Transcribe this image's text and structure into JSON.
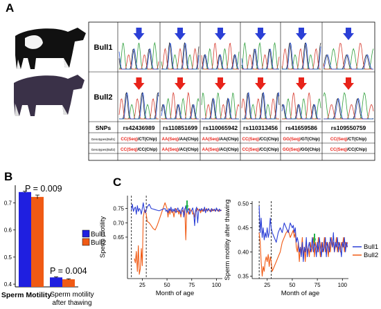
{
  "panels": {
    "a": "A",
    "b": "B",
    "c": "C"
  },
  "panel_a": {
    "bull_labels": [
      "Bull1",
      "Bull2"
    ],
    "table": {
      "header": "SNPs",
      "row_labels": [
        "Genotypes(Bull1)",
        "Genotypes(Bull2)"
      ],
      "snps": [
        "rs42436989",
        "rs110851699",
        "rs110065942",
        "rs110313456",
        "rs41659586",
        "rs109550759"
      ],
      "bull1_seq": [
        "CC(Seq)",
        "AA(Seq)",
        "AA(Seq)",
        "CC(Seq)",
        "GG(Seq)",
        "CC(Seq)"
      ],
      "bull1_chip": [
        "/CT(Chip)",
        "/AA(Chip)",
        "/AA(Chip)",
        "/CC(Chip)",
        "/GT(Chip)",
        "/CT(Chip)"
      ],
      "bull2_seq": [
        "CC(Seq)",
        "AA(Seq)",
        "AA(Seq)",
        "CC(Seq)",
        "GG(Seq)",
        "CC(Seq)"
      ],
      "bull2_chip": [
        "/CC(Chip)",
        "/AC(Chip)",
        "/AC(Chip)",
        "/CC(Chip)",
        "/GG(Chip)",
        "/CC(Chip)"
      ]
    },
    "colors": {
      "bull1_arrow": "#2b3fd6",
      "bull2_arrow": "#e8231a",
      "seq_text": "#e8231a"
    }
  },
  "chart_data": [
    {
      "type": "bar",
      "categories": [
        "Sperm Motility",
        "Sperm motility after thawing"
      ],
      "series": [
        {
          "name": "Bull1",
          "values": [
            0.74,
            0.425
          ],
          "errors": [
            0.003,
            0.002
          ],
          "color": "#1f1fe0"
        },
        {
          "name": "Bull2",
          "values": [
            0.722,
            0.418
          ],
          "errors": [
            0.007,
            0.002
          ],
          "color": "#f05a14"
        }
      ],
      "annotations": [
        "P = 0.009",
        "P = 0.004"
      ],
      "yticks": [
        "0.4",
        "0.5",
        "0.6",
        "0.7"
      ],
      "ylim": [
        0.39,
        0.765
      ],
      "legend": "right"
    },
    {
      "type": "line",
      "xlabel": "Month of age",
      "ylabel": "Sperm motility",
      "xticks": [
        "25",
        "50",
        "75",
        "100"
      ],
      "yticks": [
        "0.65",
        "0.70",
        "0.75"
      ],
      "xlim": [
        10,
        106
      ],
      "ylim": [
        0.505,
        0.795
      ],
      "vlines": [
        14,
        29
      ],
      "series": [
        {
          "name": "Bull1",
          "color": "#2b3fd6",
          "x": [
            14,
            15,
            16,
            17,
            18,
            19,
            20,
            21,
            22,
            23,
            24,
            25,
            26,
            27,
            28,
            30,
            32,
            34,
            36,
            38,
            40,
            42,
            44,
            46,
            48,
            49,
            50,
            51,
            52,
            53,
            54,
            55,
            56,
            57,
            58,
            59,
            60,
            61,
            62,
            63,
            64,
            65,
            66,
            67,
            68,
            69,
            70,
            71,
            72,
            73,
            74,
            75,
            76,
            77,
            78,
            79,
            80,
            81,
            82,
            83,
            84,
            85,
            86,
            87,
            88,
            89,
            90,
            91,
            92,
            93,
            94,
            95,
            96,
            97,
            98,
            99,
            100,
            101,
            102,
            103,
            104,
            105
          ],
          "y": [
            0.745,
            0.765,
            0.74,
            0.75,
            0.755,
            0.73,
            0.76,
            0.74,
            0.75,
            0.745,
            0.73,
            0.75,
            0.77,
            0.745,
            0.735,
            0.755,
            0.765,
            0.75,
            0.748,
            0.746,
            0.744,
            0.742,
            0.745,
            0.748,
            0.75,
            0.74,
            0.745,
            0.735,
            0.75,
            0.742,
            0.755,
            0.738,
            0.748,
            0.74,
            0.75,
            0.735,
            0.745,
            0.752,
            0.74,
            0.745,
            0.73,
            0.748,
            0.755,
            0.72,
            0.745,
            0.76,
            0.735,
            0.745,
            0.75,
            0.73,
            0.74,
            0.745,
            0.752,
            0.735,
            0.69,
            0.745,
            0.755,
            0.7,
            0.74,
            0.748,
            0.742,
            0.75,
            0.745,
            0.74,
            0.755,
            0.735,
            0.748,
            0.742,
            0.75,
            0.744,
            0.738,
            0.75,
            0.742,
            0.745,
            0.748,
            0.74,
            0.752,
            0.745,
            0.74,
            0.748,
            0.742,
            0.745
          ]
        },
        {
          "name": "Bull2",
          "color": "#f05a14",
          "x": [
            17,
            18,
            19,
            20,
            21,
            22,
            23,
            24,
            25,
            26,
            27,
            28,
            29,
            30,
            32,
            34,
            36,
            38,
            40,
            42,
            44,
            46,
            48,
            50,
            51,
            52,
            53,
            54,
            55,
            56,
            57,
            58,
            59,
            60,
            61,
            62,
            63,
            64,
            65,
            66,
            67,
            68,
            69,
            70,
            71,
            72,
            73,
            74,
            75,
            76,
            77,
            78,
            79,
            80,
            81,
            82,
            83,
            84,
            85,
            86,
            87,
            88,
            89,
            90,
            91,
            92,
            93,
            94,
            95,
            96,
            97,
            98,
            99,
            100,
            101,
            102,
            103,
            104,
            105
          ],
          "y": [
            0.575,
            0.56,
            0.6,
            0.53,
            0.62,
            0.52,
            0.54,
            0.61,
            0.55,
            0.72,
            0.74,
            0.745,
            0.73,
            0.705,
            0.7,
            0.69,
            0.68,
            0.675,
            0.69,
            0.71,
            0.73,
            0.75,
            0.77,
            0.75,
            0.72,
            0.745,
            0.73,
            0.75,
            0.735,
            0.74,
            0.72,
            0.745,
            0.75,
            0.738,
            0.742,
            0.73,
            0.745,
            0.72,
            0.745,
            0.74,
            0.735,
            0.75,
            0.64,
            0.745,
            0.74,
            0.73,
            0.75,
            0.74,
            0.745,
            0.73,
            0.735,
            0.72,
            0.745,
            0.74,
            0.75,
            0.742,
            0.748,
            0.735,
            0.745,
            0.74,
            0.748,
            0.742,
            0.745,
            0.75,
            0.74,
            0.748,
            0.742,
            0.745,
            0.74,
            0.748,
            0.742,
            0.745,
            0.74,
            0.748,
            0.742,
            0.745,
            0.74,
            0.745,
            0.742
          ]
        }
      ]
    },
    {
      "type": "line",
      "xlabel": "Month of age",
      "ylabel": "Sperm motility after thawing",
      "xticks": [
        "25",
        "50",
        "75",
        "100"
      ],
      "yticks": [
        "0.35",
        "0.40",
        "0.45",
        "0.50"
      ],
      "xlim": [
        10,
        106
      ],
      "ylim": [
        0.345,
        0.505
      ],
      "vlines": [
        17,
        29
      ],
      "series": [
        {
          "name": "Bull1",
          "color": "#2b3fd6",
          "x": [
            17,
            18,
            19,
            20,
            21,
            22,
            23,
            24,
            25,
            26,
            27,
            28,
            29,
            30,
            32,
            34,
            36,
            38,
            40,
            42,
            44,
            46,
            48,
            50,
            51,
            52,
            53,
            54,
            55,
            56,
            57,
            58,
            59,
            60,
            61,
            62,
            63,
            64,
            65,
            66,
            67,
            68,
            69,
            70,
            71,
            72,
            73,
            74,
            75,
            76,
            77,
            78,
            79,
            80,
            81,
            82,
            83,
            84,
            85,
            86,
            87,
            88,
            89,
            90,
            91,
            92,
            93,
            94,
            95,
            96,
            97,
            98,
            99,
            100,
            101,
            102,
            103,
            104,
            105
          ],
          "y": [
            0.495,
            0.44,
            0.47,
            0.43,
            0.45,
            0.425,
            0.44,
            0.43,
            0.45,
            0.43,
            0.44,
            0.47,
            0.45,
            0.44,
            0.43,
            0.42,
            0.44,
            0.45,
            0.44,
            0.46,
            0.45,
            0.44,
            0.46,
            0.45,
            0.455,
            0.44,
            0.45,
            0.42,
            0.43,
            0.42,
            0.4,
            0.41,
            0.39,
            0.42,
            0.38,
            0.41,
            0.4,
            0.43,
            0.39,
            0.41,
            0.42,
            0.4,
            0.41,
            0.43,
            0.4,
            0.42,
            0.41,
            0.39,
            0.42,
            0.4,
            0.43,
            0.41,
            0.39,
            0.42,
            0.4,
            0.41,
            0.43,
            0.39,
            0.42,
            0.41,
            0.4,
            0.43,
            0.42,
            0.41,
            0.44,
            0.4,
            0.42,
            0.41,
            0.43,
            0.4,
            0.42,
            0.41,
            0.39,
            0.42,
            0.41,
            0.43,
            0.4,
            0.42,
            0.41
          ]
        },
        {
          "name": "Bull2",
          "color": "#f05a14",
          "x": [
            17,
            18,
            19,
            20,
            21,
            22,
            23,
            24,
            25,
            26,
            27,
            28,
            29,
            30,
            32,
            34,
            36,
            38,
            40,
            42,
            44,
            46,
            48,
            50,
            51,
            52,
            53,
            54,
            55,
            56,
            57,
            58,
            59,
            60,
            61,
            62,
            63,
            64,
            65,
            66,
            67,
            68,
            69,
            70,
            71,
            72,
            73,
            74,
            75,
            76,
            77,
            78,
            79,
            80,
            81,
            82,
            83,
            84,
            85,
            86,
            87,
            88,
            89,
            90,
            91,
            92,
            93,
            94,
            95,
            96,
            97,
            98,
            99,
            100,
            101,
            102,
            103,
            104,
            105
          ],
          "y": [
            0.44,
            0.42,
            0.38,
            0.35,
            0.37,
            0.36,
            0.38,
            0.39,
            0.38,
            0.395,
            0.37,
            0.39,
            0.38,
            0.36,
            0.37,
            0.38,
            0.39,
            0.4,
            0.42,
            0.43,
            0.44,
            0.445,
            0.43,
            0.44,
            0.445,
            0.43,
            0.44,
            0.41,
            0.4,
            0.42,
            0.38,
            0.41,
            0.4,
            0.43,
            0.39,
            0.41,
            0.38,
            0.42,
            0.4,
            0.41,
            0.39,
            0.42,
            0.4,
            0.41,
            0.43,
            0.39,
            0.42,
            0.41,
            0.4,
            0.43,
            0.41,
            0.39,
            0.42,
            0.4,
            0.41,
            0.43,
            0.4,
            0.42,
            0.41,
            0.39,
            0.42,
            0.4,
            0.43,
            0.41,
            0.42,
            0.4,
            0.41,
            0.43,
            0.4,
            0.42,
            0.41,
            0.4,
            0.42,
            0.41,
            0.43,
            0.4,
            0.42,
            0.41,
            0.42
          ]
        }
      ]
    }
  ]
}
